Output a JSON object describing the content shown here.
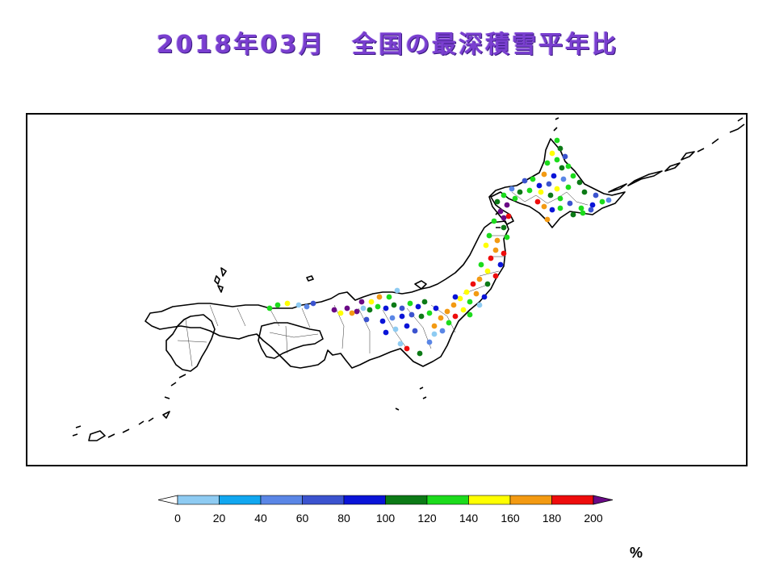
{
  "title": "2018年03月　全国の最深積雪平年比",
  "unit": "%",
  "legend": {
    "ticks": [
      "0",
      "20",
      "40",
      "60",
      "80",
      "100",
      "120",
      "140",
      "160",
      "180",
      "200"
    ],
    "colors": [
      "#8ecbf2",
      "#11a7f0",
      "#5a86e6",
      "#3b53cf",
      "#0a14d8",
      "#0c7a16",
      "#1cdb1c",
      "#ffff00",
      "#f39a12",
      "#ee0c0c"
    ],
    "under_color": "#ffffff",
    "over_color": "#6a0a86"
  },
  "stations": {
    "colors": {
      "c0": "#8ecbf2",
      "c1": "#11a7f0",
      "c2": "#5a86e6",
      "c3": "#3b53cf",
      "c4": "#0a14d8",
      "c5": "#0c7a16",
      "c6": "#1cdb1c",
      "c7": "#ffff00",
      "c8": "#f39a12",
      "c9": "#ee0c0c",
      "c10": "#6a0a86"
    }
  }
}
